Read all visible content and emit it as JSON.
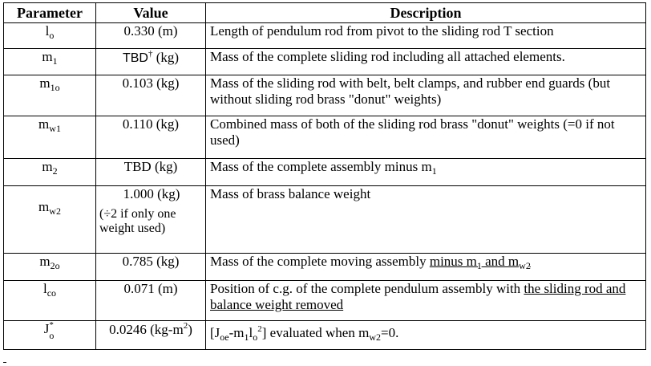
{
  "headers": {
    "parameter": "Parameter",
    "value": "Value",
    "description": "Description"
  },
  "rows": [
    {
      "param": {
        "base": "l",
        "sub": "o"
      },
      "value": "0.330 (m)",
      "desc": "Length of pendulum rod from pivot to the sliding rod T section"
    },
    {
      "param": {
        "base": "m",
        "sub": "1"
      },
      "value": {
        "main": "TBD",
        "mark": "†",
        "unit": " (kg)"
      },
      "desc": "Mass of the complete sliding rod including all attached elements."
    },
    {
      "param": {
        "base": "m",
        "sub": "1o"
      },
      "value": "0.103 (kg)",
      "desc": "Mass of the sliding rod with belt, belt clamps, and rubber end guards (but without sliding rod brass \"donut\" weights)"
    },
    {
      "param": {
        "base": "m",
        "sub": "w1"
      },
      "value": "0.110 (kg)",
      "desc": "Combined mass of both of the sliding rod brass \"donut\" weights (=0 if not used)"
    },
    {
      "param": {
        "base": "m",
        "sub": "2"
      },
      "value": "TBD (kg)",
      "desc": {
        "text": "Mass of the complete assembly minus m",
        "sub": "1"
      }
    },
    {
      "param": {
        "base": "m",
        "sub": "w2"
      },
      "value": "1.000 (kg)",
      "value_note": "(÷2 if only one weight used)",
      "desc": "Mass of brass balance weight"
    },
    {
      "param": {
        "base": "m",
        "sub": "2o"
      },
      "value": "0.785 (kg)",
      "desc": {
        "text": "Mass of the complete moving assembly ",
        "u1": "minus m",
        "u1_sub": "1",
        "u2": " and m",
        "u2_sub": "w2"
      }
    },
    {
      "param": {
        "base": "l",
        "sub": "co"
      },
      "value": "0.071 (m)",
      "desc": {
        "text": "Position of c.g. of the complete pendulum assembly with ",
        "u": "the sliding rod and balance weight removed"
      }
    },
    {
      "param": {
        "base": "J",
        "sup": "*",
        "sub": "o"
      },
      "value": {
        "main": "0.0246 (kg-m",
        "sup": "2",
        "tail": ")"
      },
      "desc": {
        "a": "[J",
        "a_sub": "oe",
        "b": "-m",
        "b_sub": "1",
        "c": "l",
        "c_sub": "o",
        "c_sup": "2",
        "d": "] evaluated when m",
        "d_sub": "w2",
        "e": "=0."
      }
    }
  ]
}
